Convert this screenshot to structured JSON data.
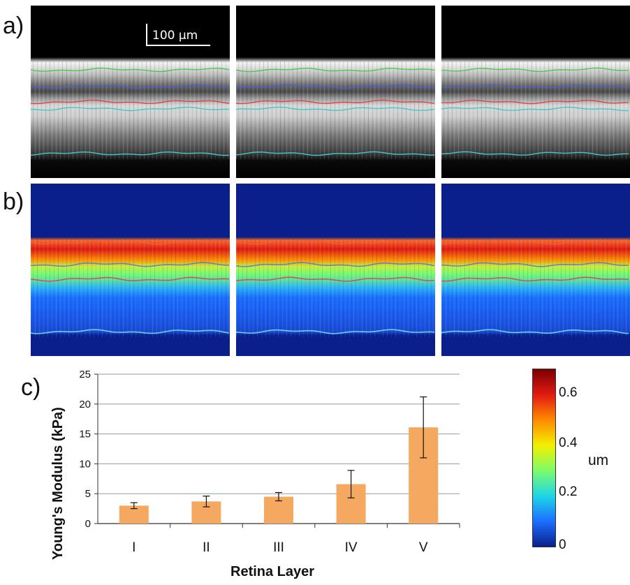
{
  "panel_labels": {
    "a": "a)",
    "b": "b)",
    "c": "c)"
  },
  "scalebar": {
    "label": "100 μm"
  },
  "oct_images": [
    "oct-image-1",
    "oct-image-2",
    "oct-image-3"
  ],
  "displacement_images": [
    "displacement-map-1",
    "displacement-map-2",
    "displacement-map-3"
  ],
  "layer_line_colors": {
    "green": "#4ec94e",
    "blue": "#4a5fd6",
    "red": "#e0434a",
    "cyan": "#43c8c8"
  },
  "colorbar": {
    "unit": "um",
    "ticks": [
      "0.6",
      "0.4",
      "0.2",
      "0"
    ],
    "colors": [
      "#7a0000",
      "#e11a12",
      "#ff8a00",
      "#f3f000",
      "#7cfc6a",
      "#1fd6e6",
      "#1b6fff",
      "#0a1f8a"
    ]
  },
  "chart_data": {
    "type": "bar",
    "categories": [
      "I",
      "II",
      "III",
      "IV",
      "V"
    ],
    "values": [
      3.0,
      3.7,
      4.5,
      6.6,
      16.1
    ],
    "errors": [
      0.5,
      0.9,
      0.7,
      2.3,
      5.1
    ],
    "xlabel": "Retina Layer",
    "ylabel": "Young's Modulus (kPa)",
    "ylim": [
      0,
      25
    ],
    "yticks": [
      "0",
      "5",
      "10",
      "15",
      "20",
      "25"
    ],
    "grid": true,
    "bar_color": "#f5a85f"
  }
}
